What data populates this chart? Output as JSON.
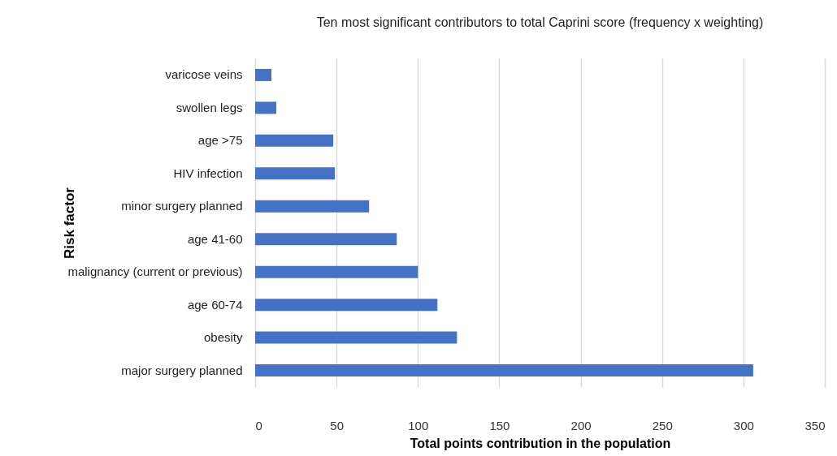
{
  "chart_data": {
    "type": "bar",
    "orientation": "horizontal",
    "title": "Ten most significant contributors to total Caprini score (frequency x weighting)",
    "xlabel": "Total points contribution in the population",
    "ylabel": "Risk factor",
    "categories": [
      "varicose veins",
      "swollen legs",
      "age >75",
      "HIV infection",
      "minor surgery planned",
      "age 41-60",
      "malignancy (current or previous)",
      "age 60-74",
      "obesity",
      "major surgery planned"
    ],
    "values": [
      10,
      13,
      48,
      49,
      70,
      87,
      100,
      112,
      124,
      306
    ],
    "color": "#4472c4",
    "xlim": [
      0,
      350
    ],
    "xticks": [
      0,
      50,
      100,
      150,
      200,
      250,
      300,
      350
    ],
    "grid": "x"
  }
}
